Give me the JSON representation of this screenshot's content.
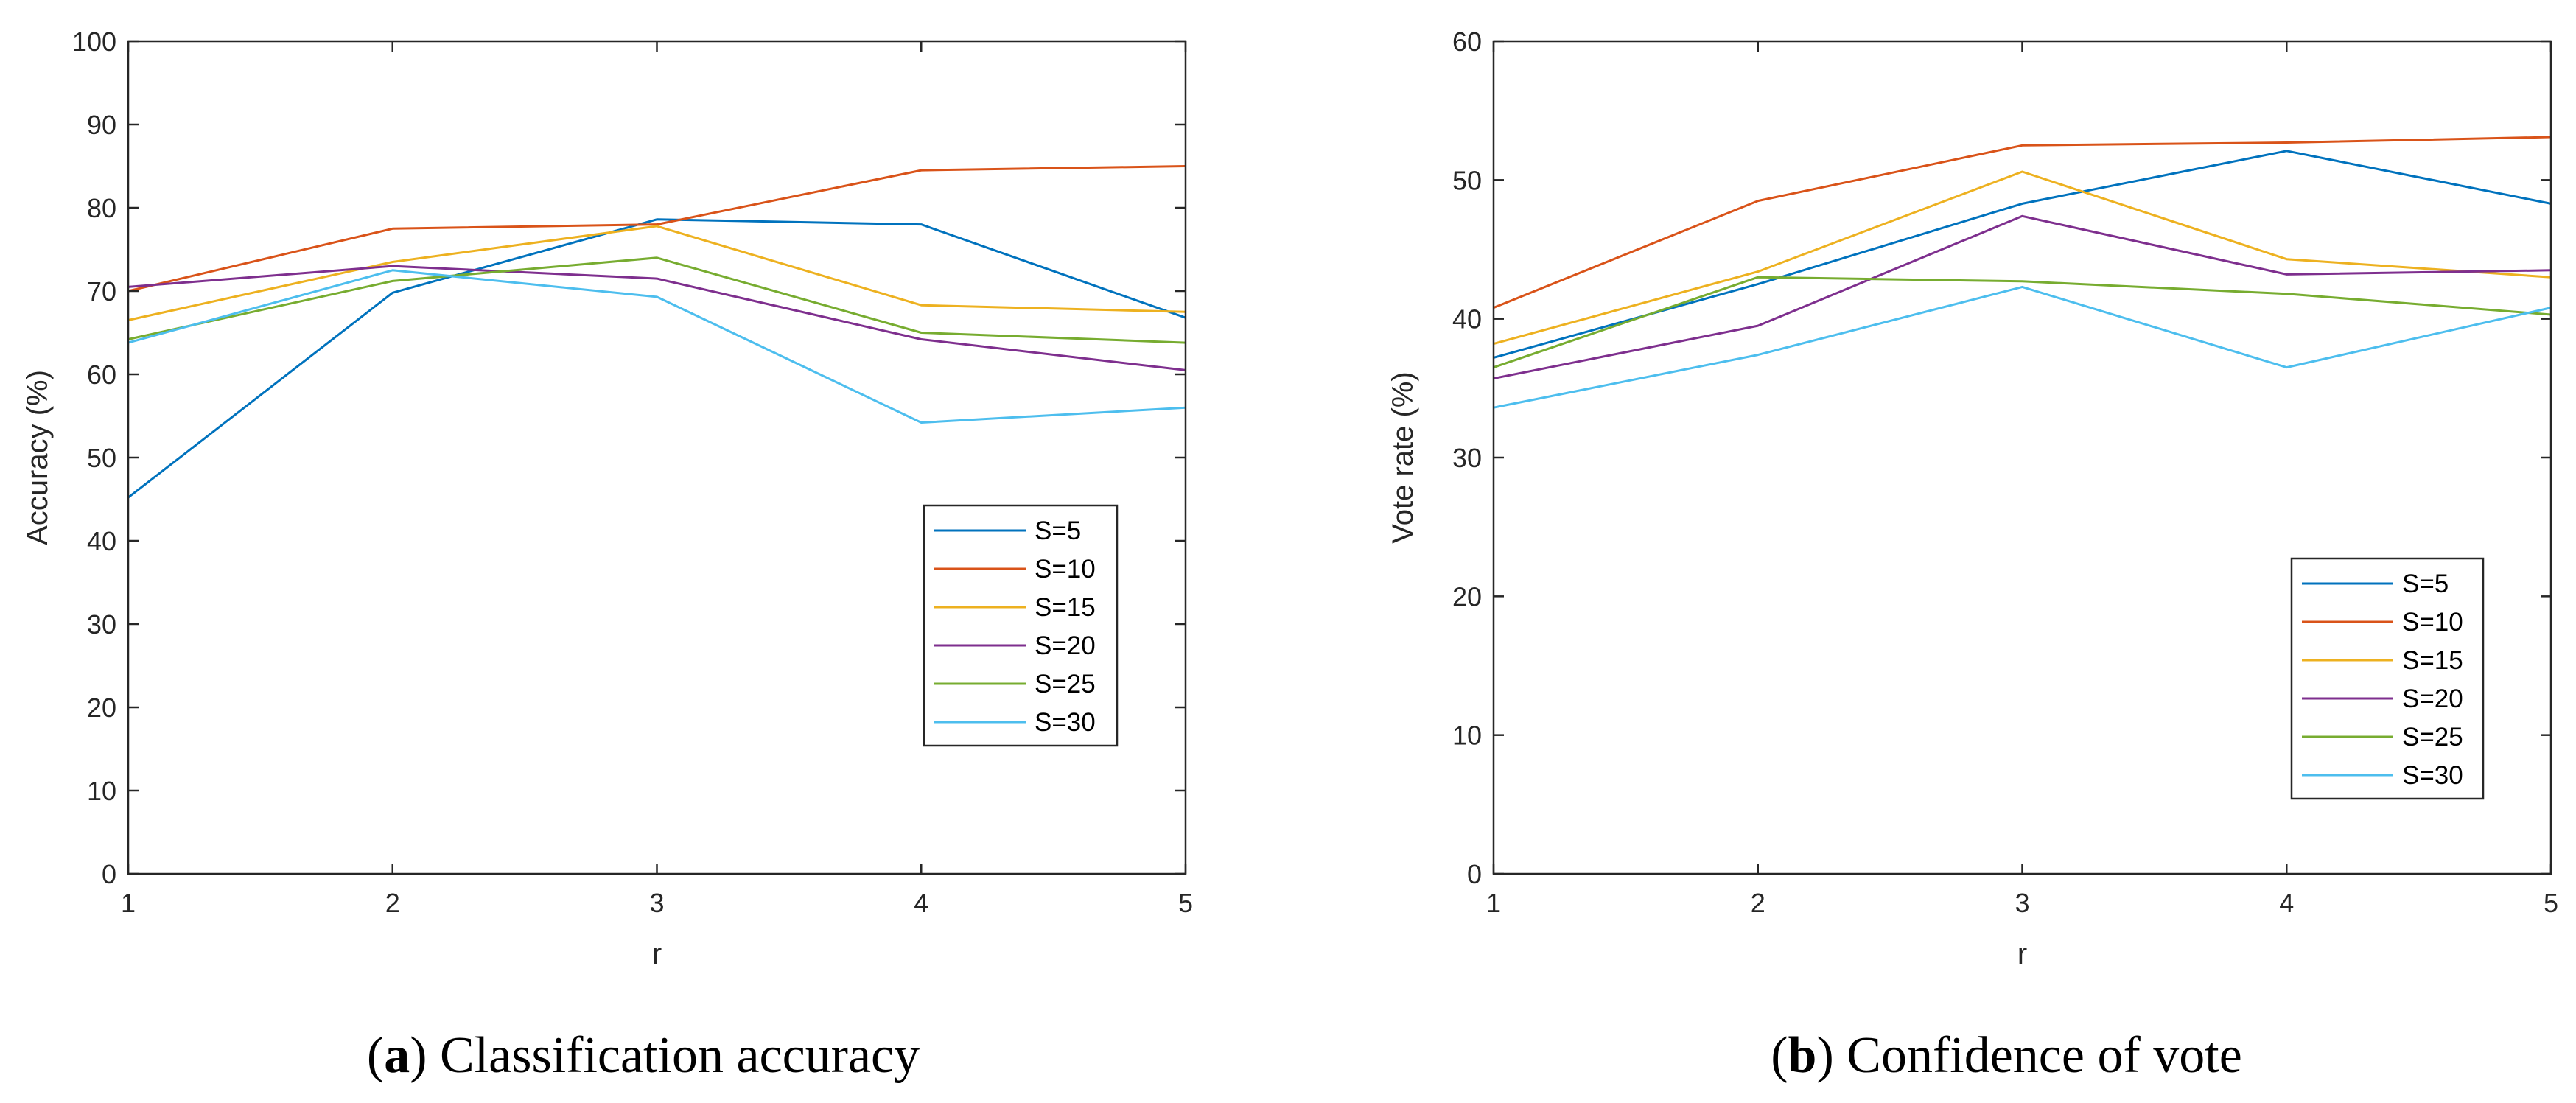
{
  "chart_data": [
    {
      "type": "line",
      "caption_letter": "a",
      "caption_text": "Classification accuracy",
      "xlabel": "r",
      "ylabel": "Accuracy (%)",
      "x": [
        1,
        2,
        3,
        4,
        5
      ],
      "xlim": [
        1,
        5
      ],
      "ylim": [
        0,
        100
      ],
      "xticks": [
        1,
        2,
        3,
        4,
        5
      ],
      "yticks": [
        0,
        10,
        20,
        30,
        40,
        50,
        60,
        70,
        80,
        90,
        100
      ],
      "grid": false,
      "legend_position": "lower-right",
      "series": [
        {
          "name": "S=5",
          "color": "#0072BD",
          "values": [
            45.2,
            69.8,
            78.6,
            78.0,
            66.8
          ]
        },
        {
          "name": "S=10",
          "color": "#D95319",
          "values": [
            70.0,
            77.5,
            78.0,
            84.5,
            85.0
          ]
        },
        {
          "name": "S=15",
          "color": "#EDB120",
          "values": [
            66.5,
            73.5,
            77.8,
            68.3,
            67.5
          ]
        },
        {
          "name": "S=20",
          "color": "#7E2F8E",
          "values": [
            70.5,
            73.0,
            71.5,
            64.2,
            60.5
          ]
        },
        {
          "name": "S=25",
          "color": "#77AC30",
          "values": [
            64.2,
            71.2,
            74.0,
            65.0,
            63.8
          ]
        },
        {
          "name": "S=30",
          "color": "#4DBEEE",
          "values": [
            63.8,
            72.5,
            69.3,
            54.2,
            56.0
          ]
        }
      ]
    },
    {
      "type": "line",
      "caption_letter": "b",
      "caption_text": "Confidence of vote",
      "xlabel": "r",
      "ylabel": "Vote rate (%)",
      "x": [
        1,
        2,
        3,
        4,
        5
      ],
      "xlim": [
        1,
        5
      ],
      "ylim": [
        0,
        60
      ],
      "xticks": [
        1,
        2,
        3,
        4,
        5
      ],
      "yticks": [
        0,
        10,
        20,
        30,
        40,
        50,
        60
      ],
      "grid": false,
      "legend_position": "lower-right",
      "series": [
        {
          "name": "S=5",
          "color": "#0072BD",
          "values": [
            37.2,
            42.5,
            48.3,
            52.1,
            48.3
          ]
        },
        {
          "name": "S=10",
          "color": "#D95319",
          "values": [
            40.8,
            48.5,
            52.5,
            52.7,
            53.1
          ]
        },
        {
          "name": "S=15",
          "color": "#EDB120",
          "values": [
            38.2,
            43.4,
            50.6,
            44.3,
            43.0
          ]
        },
        {
          "name": "S=20",
          "color": "#7E2F8E",
          "values": [
            35.7,
            39.5,
            47.4,
            43.2,
            43.5
          ]
        },
        {
          "name": "S=25",
          "color": "#77AC30",
          "values": [
            36.5,
            43.0,
            42.7,
            41.8,
            40.3
          ]
        },
        {
          "name": "S=30",
          "color": "#4DBEEE",
          "values": [
            33.6,
            37.4,
            42.3,
            36.5,
            40.8
          ]
        }
      ]
    }
  ]
}
